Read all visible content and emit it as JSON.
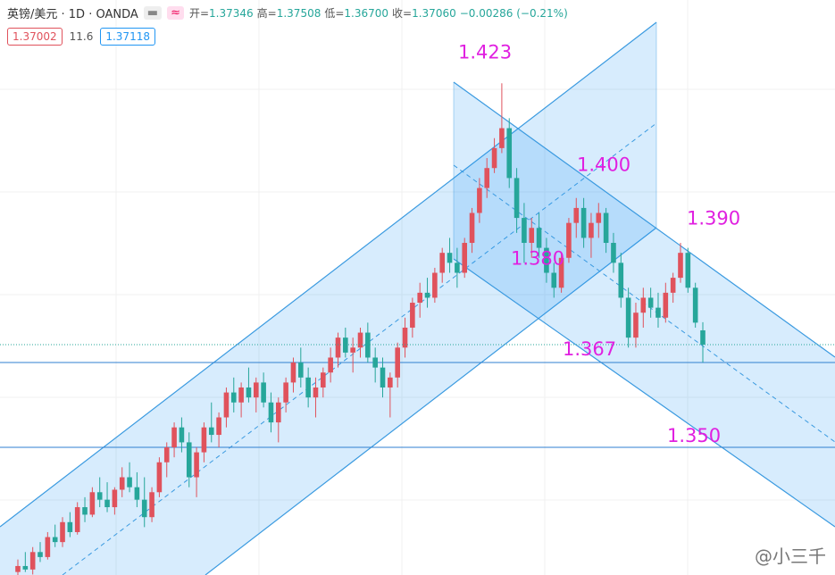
{
  "header": {
    "symbol": "英镑/美元 · 1D · OANDA",
    "ohlc": [
      {
        "label": "开=",
        "value": "1.37346"
      },
      {
        "label": "高=",
        "value": "1.37508"
      },
      {
        "label": "低=",
        "value": "1.36700"
      },
      {
        "label": "收=",
        "value": "1.37060"
      }
    ],
    "change": "−0.00286 (−0.21%)",
    "badges": [
      "1.37002",
      "11.6",
      "1.37118"
    ]
  },
  "watermark": "@小三千",
  "chart_data": {
    "type": "candlestick",
    "up_color": "#e0525c",
    "down_color": "#26a69a",
    "ylim": [
      1.3244,
      1.4397
    ],
    "hlines": [
      1.367,
      1.35
    ],
    "price_labels": [
      {
        "value": 1.423,
        "label": "1.423"
      },
      {
        "value": 1.4,
        "label": "1.400"
      },
      {
        "value": 1.39,
        "label": "1.390"
      },
      {
        "value": 1.38,
        "label": "1.380"
      },
      {
        "value": 1.367,
        "label": "1.367"
      },
      {
        "value": 1.35,
        "label": "1.350"
      }
    ],
    "candles": [
      [
        1.325,
        1.3275,
        1.324,
        1.3262
      ],
      [
        1.3262,
        1.329,
        1.325,
        1.3255
      ],
      [
        1.3255,
        1.33,
        1.3245,
        1.329
      ],
      [
        1.329,
        1.331,
        1.327,
        1.328
      ],
      [
        1.328,
        1.333,
        1.3275,
        1.332
      ],
      [
        1.332,
        1.3345,
        1.33,
        1.331
      ],
      [
        1.331,
        1.336,
        1.33,
        1.335
      ],
      [
        1.335,
        1.337,
        1.332,
        1.333
      ],
      [
        1.333,
        1.339,
        1.3325,
        1.338
      ],
      [
        1.338,
        1.34,
        1.335,
        1.3365
      ],
      [
        1.3365,
        1.342,
        1.336,
        1.341
      ],
      [
        1.341,
        1.344,
        1.338,
        1.3395
      ],
      [
        1.3395,
        1.343,
        1.337,
        1.338
      ],
      [
        1.338,
        1.342,
        1.3365,
        1.3415
      ],
      [
        1.3415,
        1.346,
        1.34,
        1.344
      ],
      [
        1.344,
        1.347,
        1.341,
        1.342
      ],
      [
        1.342,
        1.345,
        1.338,
        1.3395
      ],
      [
        1.3395,
        1.344,
        1.334,
        1.336
      ],
      [
        1.336,
        1.342,
        1.335,
        1.341
      ],
      [
        1.341,
        1.348,
        1.34,
        1.347
      ],
      [
        1.347,
        1.351,
        1.344,
        1.35
      ],
      [
        1.35,
        1.355,
        1.348,
        1.354
      ],
      [
        1.354,
        1.356,
        1.349,
        1.351
      ],
      [
        1.351,
        1.353,
        1.342,
        1.344
      ],
      [
        1.344,
        1.35,
        1.34,
        1.349
      ],
      [
        1.349,
        1.355,
        1.347,
        1.354
      ],
      [
        1.354,
        1.359,
        1.351,
        1.3525
      ],
      [
        1.3525,
        1.357,
        1.35,
        1.356
      ],
      [
        1.356,
        1.362,
        1.354,
        1.361
      ],
      [
        1.361,
        1.364,
        1.357,
        1.359
      ],
      [
        1.359,
        1.363,
        1.356,
        1.362
      ],
      [
        1.362,
        1.366,
        1.359,
        1.36
      ],
      [
        1.36,
        1.364,
        1.357,
        1.363
      ],
      [
        1.363,
        1.365,
        1.358,
        1.359
      ],
      [
        1.359,
        1.361,
        1.353,
        1.355
      ],
      [
        1.355,
        1.36,
        1.351,
        1.359
      ],
      [
        1.359,
        1.364,
        1.357,
        1.363
      ],
      [
        1.363,
        1.368,
        1.361,
        1.367
      ],
      [
        1.367,
        1.37,
        1.362,
        1.364
      ],
      [
        1.364,
        1.366,
        1.358,
        1.36
      ],
      [
        1.36,
        1.364,
        1.356,
        1.362
      ],
      [
        1.362,
        1.366,
        1.36,
        1.365
      ],
      [
        1.365,
        1.37,
        1.363,
        1.368
      ],
      [
        1.368,
        1.373,
        1.366,
        1.372
      ],
      [
        1.372,
        1.374,
        1.368,
        1.369
      ],
      [
        1.369,
        1.372,
        1.365,
        1.37
      ],
      [
        1.37,
        1.374,
        1.368,
        1.373
      ],
      [
        1.373,
        1.375,
        1.367,
        1.368
      ],
      [
        1.368,
        1.37,
        1.363,
        1.366
      ],
      [
        1.366,
        1.368,
        1.36,
        1.362
      ],
      [
        1.362,
        1.365,
        1.356,
        1.364
      ],
      [
        1.364,
        1.371,
        1.362,
        1.37
      ],
      [
        1.37,
        1.376,
        1.368,
        1.374
      ],
      [
        1.374,
        1.38,
        1.372,
        1.379
      ],
      [
        1.379,
        1.383,
        1.376,
        1.381
      ],
      [
        1.381,
        1.384,
        1.378,
        1.38
      ],
      [
        1.38,
        1.386,
        1.379,
        1.385
      ],
      [
        1.385,
        1.39,
        1.383,
        1.389
      ],
      [
        1.389,
        1.392,
        1.385,
        1.387
      ],
      [
        1.387,
        1.39,
        1.382,
        1.385
      ],
      [
        1.385,
        1.392,
        1.384,
        1.391
      ],
      [
        1.391,
        1.398,
        1.389,
        1.397
      ],
      [
        1.397,
        1.404,
        1.395,
        1.402
      ],
      [
        1.402,
        1.408,
        1.4,
        1.406
      ],
      [
        1.406,
        1.412,
        1.405,
        1.41
      ],
      [
        1.41,
        1.423,
        1.409,
        1.414
      ],
      [
        1.414,
        1.416,
        1.402,
        1.404
      ],
      [
        1.404,
        1.406,
        1.393,
        1.396
      ],
      [
        1.396,
        1.399,
        1.387,
        1.391
      ],
      [
        1.391,
        1.396,
        1.388,
        1.394
      ],
      [
        1.394,
        1.397,
        1.388,
        1.39
      ],
      [
        1.39,
        1.392,
        1.383,
        1.385
      ],
      [
        1.385,
        1.387,
        1.38,
        1.382
      ],
      [
        1.382,
        1.389,
        1.381,
        1.388
      ],
      [
        1.388,
        1.396,
        1.387,
        1.395
      ],
      [
        1.395,
        1.4,
        1.392,
        1.398
      ],
      [
        1.398,
        1.4,
        1.39,
        1.392
      ],
      [
        1.392,
        1.397,
        1.388,
        1.395
      ],
      [
        1.395,
        1.399,
        1.392,
        1.397
      ],
      [
        1.397,
        1.398,
        1.389,
        1.391
      ],
      [
        1.391,
        1.393,
        1.385,
        1.387
      ],
      [
        1.387,
        1.389,
        1.378,
        1.38
      ],
      [
        1.38,
        1.382,
        1.37,
        1.372
      ],
      [
        1.372,
        1.379,
        1.37,
        1.377
      ],
      [
        1.377,
        1.382,
        1.374,
        1.38
      ],
      [
        1.38,
        1.382,
        1.376,
        1.378
      ],
      [
        1.378,
        1.381,
        1.374,
        1.376
      ],
      [
        1.376,
        1.383,
        1.375,
        1.381
      ],
      [
        1.381,
        1.385,
        1.379,
        1.384
      ],
      [
        1.384,
        1.391,
        1.383,
        1.389
      ],
      [
        1.389,
        1.39,
        1.381,
        1.382
      ],
      [
        1.382,
        1.383,
        1.374,
        1.375
      ],
      [
        1.37346,
        1.37508,
        1.367,
        1.3706
      ]
    ]
  }
}
